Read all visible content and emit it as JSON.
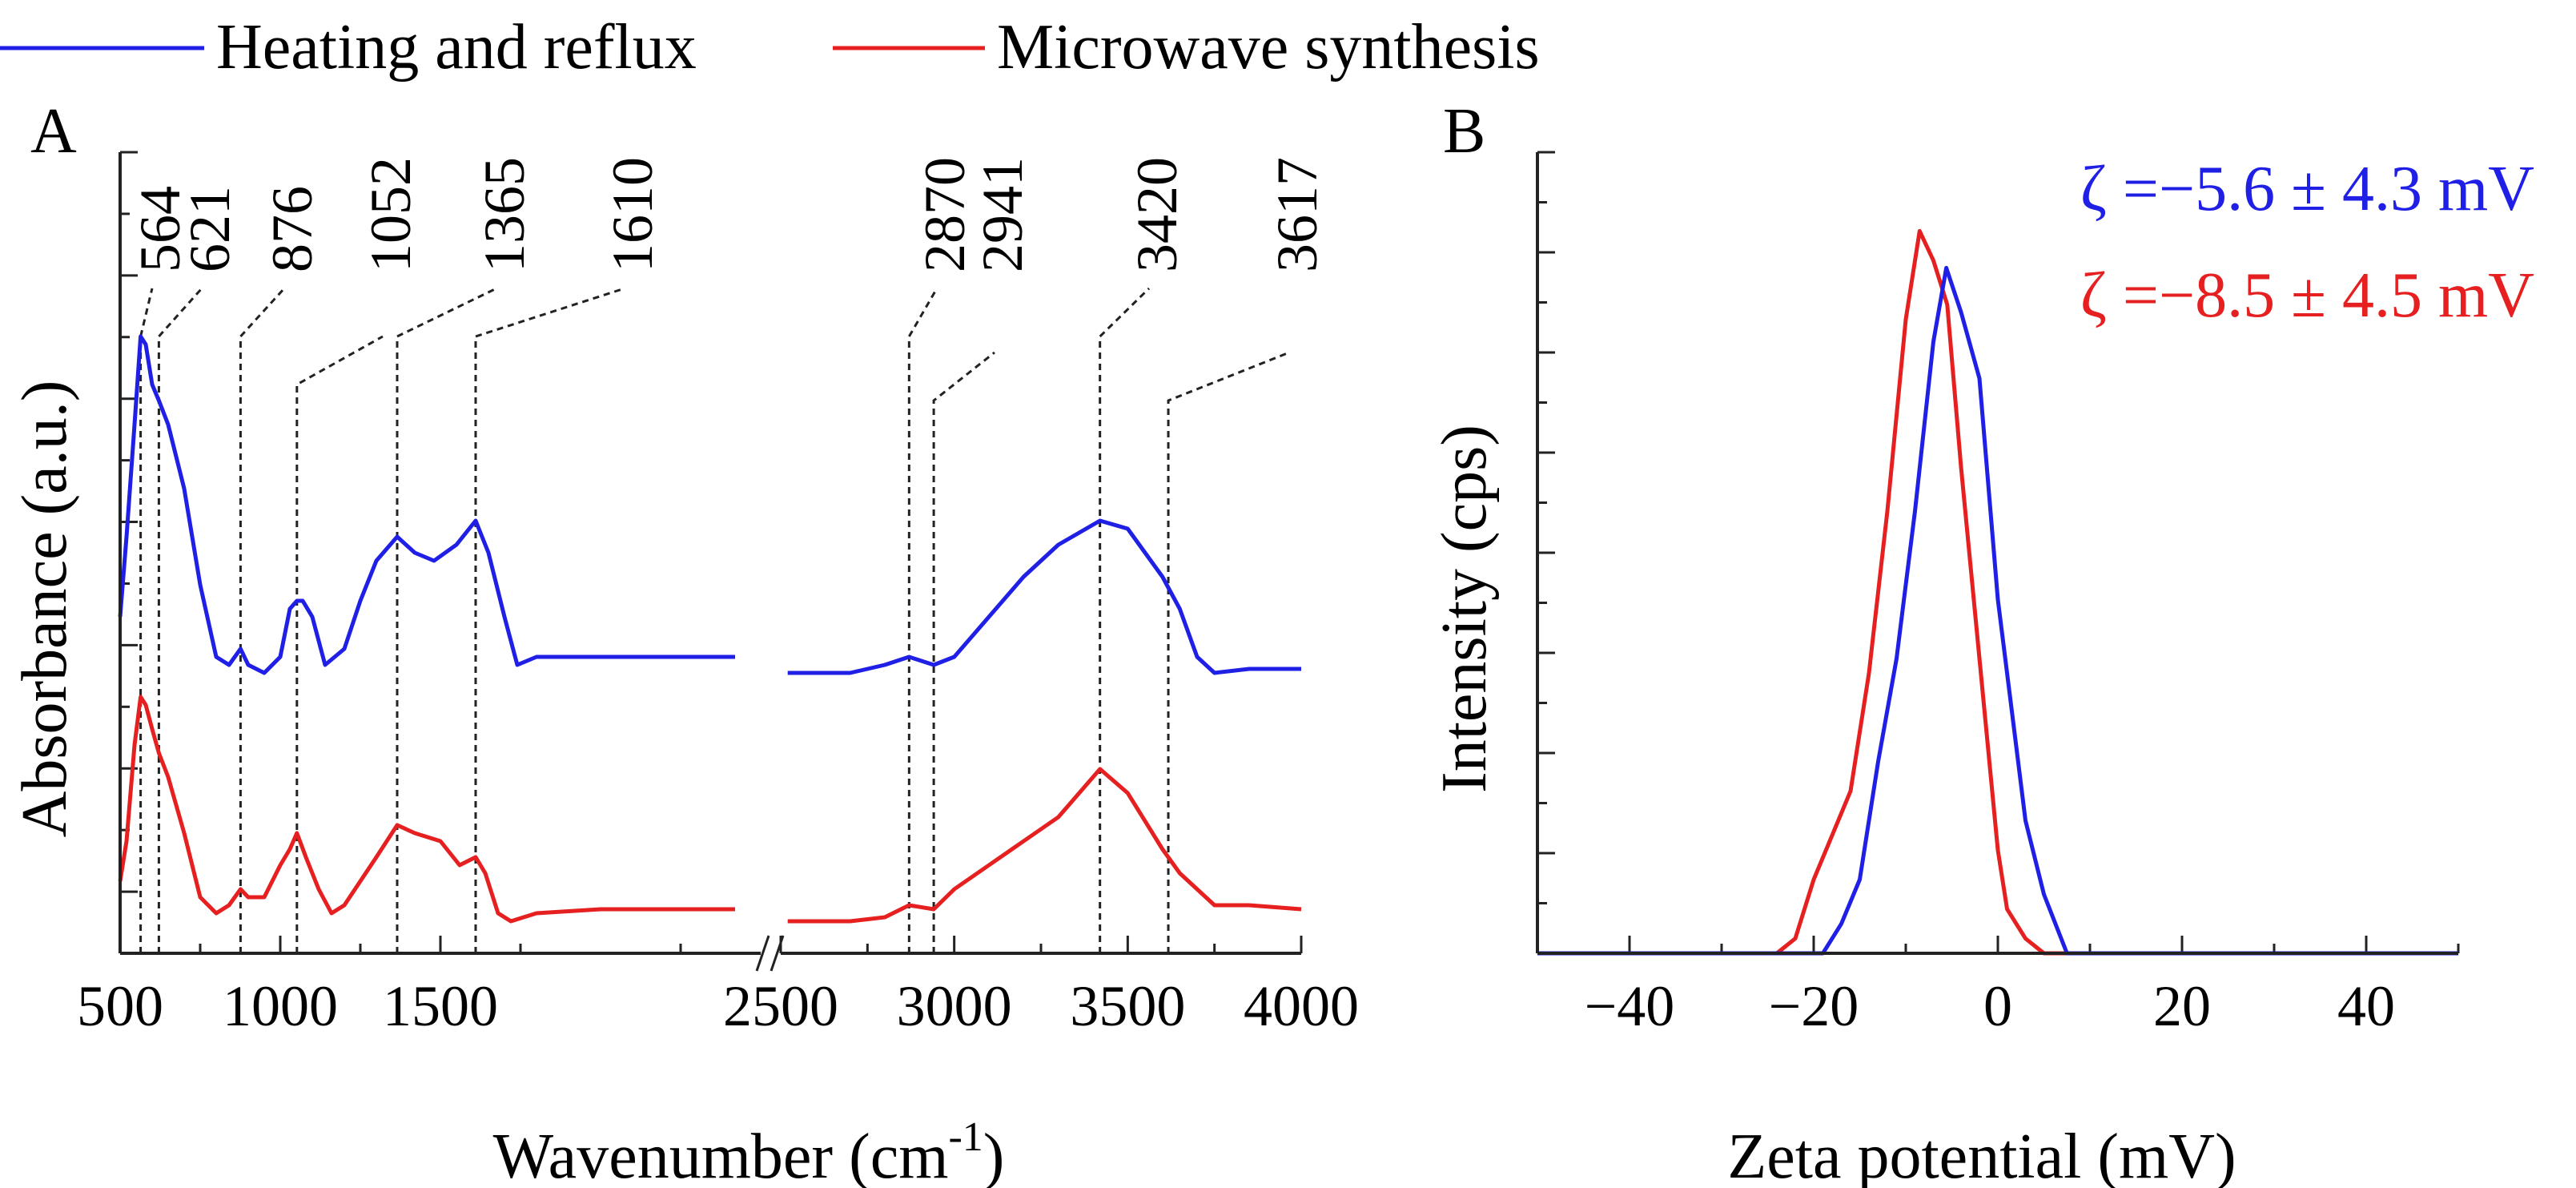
{
  "legend": {
    "placement": "top",
    "items": [
      {
        "label": "Heating and reflux",
        "color": "#1f1fe6"
      },
      {
        "label": "Microwave synthesis",
        "color": "#e62020"
      }
    ]
  },
  "chart_data": [
    {
      "panel_label": "A",
      "type": "line",
      "xlabel": "Wavenumber (cm",
      "xlabel_sup": "-1",
      "xlabel_close": ")",
      "ylabel": "Absorbance (a.u.)",
      "x_axis_break": true,
      "x_segments": [
        {
          "xlim": [
            500,
            2500
          ],
          "ticks": [
            500,
            1000,
            1500
          ],
          "tick_labels": [
            "500",
            "1000",
            "1500"
          ]
        },
        {
          "xlim": [
            2500,
            4000
          ],
          "ticks": [
            2500,
            3000,
            3500,
            4000
          ],
          "tick_labels": [
            "2500",
            "3000",
            "3500",
            "4000"
          ]
        }
      ],
      "y_ticks_labeled": false,
      "ylim": [
        0,
        1
      ],
      "peak_annotations": [
        {
          "label": "564",
          "x": 564
        },
        {
          "label": "621",
          "x": 621
        },
        {
          "label": "876",
          "x": 876
        },
        {
          "label": "1052",
          "x": 1052
        },
        {
          "label": "1365",
          "x": 1365
        },
        {
          "label": "1610",
          "x": 1610
        },
        {
          "label": "2870",
          "x": 2870
        },
        {
          "label": "2941",
          "x": 2941
        },
        {
          "label": "3420",
          "x": 3420
        },
        {
          "label": "3617",
          "x": 3617
        }
      ],
      "series": [
        {
          "name": "Heating and reflux",
          "color": "#1f1fe6",
          "segments": [
            [
              [
                500,
                0.42
              ],
              [
                520,
                0.52
              ],
              [
                545,
                0.66
              ],
              [
                564,
                0.77
              ],
              [
                580,
                0.76
              ],
              [
                600,
                0.71
              ],
              [
                621,
                0.69
              ],
              [
                650,
                0.66
              ],
              [
                700,
                0.58
              ],
              [
                750,
                0.46
              ],
              [
                800,
                0.37
              ],
              [
                840,
                0.36
              ],
              [
                876,
                0.38
              ],
              [
                900,
                0.36
              ],
              [
                950,
                0.35
              ],
              [
                1000,
                0.37
              ],
              [
                1030,
                0.43
              ],
              [
                1052,
                0.44
              ],
              [
                1070,
                0.44
              ],
              [
                1100,
                0.42
              ],
              [
                1140,
                0.36
              ],
              [
                1200,
                0.38
              ],
              [
                1250,
                0.44
              ],
              [
                1300,
                0.49
              ],
              [
                1365,
                0.52
              ],
              [
                1420,
                0.5
              ],
              [
                1480,
                0.49
              ],
              [
                1550,
                0.51
              ],
              [
                1610,
                0.54
              ],
              [
                1650,
                0.5
              ],
              [
                1700,
                0.42
              ],
              [
                1740,
                0.36
              ],
              [
                1800,
                0.37
              ],
              [
                1900,
                0.37
              ],
              [
                2000,
                0.37
              ],
              [
                2200,
                0.37
              ],
              [
                2420,
                0.37
              ]
            ],
            [
              [
                2520,
                0.35
              ],
              [
                2600,
                0.35
              ],
              [
                2700,
                0.35
              ],
              [
                2800,
                0.36
              ],
              [
                2870,
                0.37
              ],
              [
                2941,
                0.36
              ],
              [
                3000,
                0.37
              ],
              [
                3100,
                0.42
              ],
              [
                3200,
                0.47
              ],
              [
                3300,
                0.51
              ],
              [
                3420,
                0.54
              ],
              [
                3500,
                0.53
              ],
              [
                3600,
                0.47
              ],
              [
                3650,
                0.43
              ],
              [
                3700,
                0.37
              ],
              [
                3750,
                0.35
              ],
              [
                3850,
                0.355
              ],
              [
                4000,
                0.355
              ]
            ]
          ]
        },
        {
          "name": "Microwave synthesis",
          "color": "#e62020",
          "segments": [
            [
              [
                500,
                0.09
              ],
              [
                520,
                0.14
              ],
              [
                545,
                0.26
              ],
              [
                564,
                0.32
              ],
              [
                580,
                0.31
              ],
              [
                600,
                0.28
              ],
              [
                621,
                0.25
              ],
              [
                650,
                0.22
              ],
              [
                700,
                0.15
              ],
              [
                750,
                0.07
              ],
              [
                800,
                0.05
              ],
              [
                840,
                0.06
              ],
              [
                876,
                0.08
              ],
              [
                900,
                0.07
              ],
              [
                950,
                0.07
              ],
              [
                1000,
                0.11
              ],
              [
                1030,
                0.13
              ],
              [
                1052,
                0.15
              ],
              [
                1080,
                0.12
              ],
              [
                1120,
                0.08
              ],
              [
                1160,
                0.05
              ],
              [
                1200,
                0.06
              ],
              [
                1300,
                0.12
              ],
              [
                1365,
                0.16
              ],
              [
                1420,
                0.15
              ],
              [
                1500,
                0.14
              ],
              [
                1560,
                0.11
              ],
              [
                1610,
                0.12
              ],
              [
                1640,
                0.1
              ],
              [
                1680,
                0.05
              ],
              [
                1720,
                0.04
              ],
              [
                1800,
                0.05
              ],
              [
                2000,
                0.055
              ],
              [
                2200,
                0.055
              ],
              [
                2420,
                0.055
              ]
            ],
            [
              [
                2520,
                0.04
              ],
              [
                2700,
                0.04
              ],
              [
                2800,
                0.045
              ],
              [
                2870,
                0.06
              ],
              [
                2941,
                0.055
              ],
              [
                3000,
                0.08
              ],
              [
                3100,
                0.11
              ],
              [
                3200,
                0.14
              ],
              [
                3300,
                0.17
              ],
              [
                3420,
                0.23
              ],
              [
                3500,
                0.2
              ],
              [
                3600,
                0.13
              ],
              [
                3650,
                0.1
              ],
              [
                3700,
                0.08
              ],
              [
                3750,
                0.06
              ],
              [
                3850,
                0.06
              ],
              [
                4000,
                0.055
              ]
            ]
          ]
        }
      ]
    },
    {
      "panel_label": "B",
      "type": "line",
      "xlabel": "Zeta potential (mV)",
      "ylabel": "Intensity (cps)",
      "xlim": [
        -50,
        50
      ],
      "x_ticks": [
        -40,
        -20,
        0,
        20,
        40
      ],
      "x_tick_labels": [
        "−40",
        "−20",
        "0",
        "20",
        "40"
      ],
      "y_ticks_labeled": false,
      "ylim": [
        0,
        1
      ],
      "annotations": [
        {
          "text": "ζ =−5.6 ± 4.3 mV",
          "color": "#1f1fe6"
        },
        {
          "text": "ζ =−8.5 ± 4.5 mV",
          "color": "#e62020"
        }
      ],
      "series": [
        {
          "name": "Heating and reflux",
          "color": "#1f1fe6",
          "points": [
            [
              -50,
              0
            ],
            [
              -19,
              0
            ],
            [
              -17,
              0.04
            ],
            [
              -15,
              0.1
            ],
            [
              -13,
              0.26
            ],
            [
              -11,
              0.4
            ],
            [
              -9,
              0.6
            ],
            [
              -7,
              0.83
            ],
            [
              -5.6,
              0.93
            ],
            [
              -4,
              0.87
            ],
            [
              -2,
              0.78
            ],
            [
              0,
              0.48
            ],
            [
              1.5,
              0.33
            ],
            [
              3,
              0.18
            ],
            [
              5,
              0.08
            ],
            [
              7.5,
              0
            ],
            [
              50,
              0
            ]
          ]
        },
        {
          "name": "Microwave synthesis",
          "color": "#e62020",
          "points": [
            [
              -50,
              0
            ],
            [
              -24,
              0
            ],
            [
              -22,
              0.02
            ],
            [
              -20,
              0.1
            ],
            [
              -16,
              0.22
            ],
            [
              -14,
              0.38
            ],
            [
              -12,
              0.6
            ],
            [
              -10,
              0.86
            ],
            [
              -8.5,
              0.98
            ],
            [
              -7,
              0.94
            ],
            [
              -5.5,
              0.88
            ],
            [
              -4,
              0.66
            ],
            [
              -2,
              0.4
            ],
            [
              0,
              0.14
            ],
            [
              1,
              0.06
            ],
            [
              3,
              0.02
            ],
            [
              5,
              0
            ],
            [
              50,
              0
            ]
          ]
        }
      ]
    }
  ]
}
